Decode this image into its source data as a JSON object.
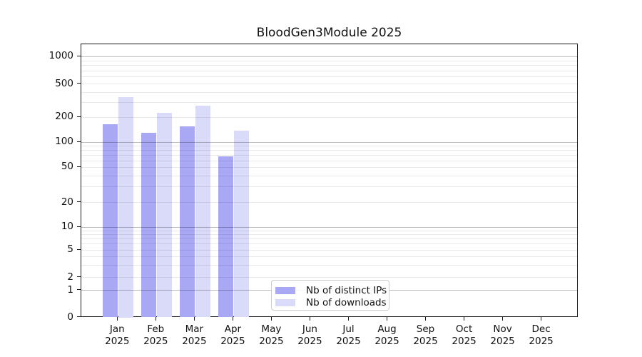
{
  "chart_data": {
    "type": "bar",
    "title": "BloodGen3Module 2025",
    "x_axis": {
      "months": [
        "Jan",
        "Feb",
        "Mar",
        "Apr",
        "May",
        "Jun",
        "Jul",
        "Aug",
        "Sep",
        "Oct",
        "Nov",
        "Dec"
      ],
      "year": "2025"
    },
    "y_axis": {
      "scale": "symlog",
      "tick_labels": [
        "1000",
        "500",
        "200",
        "100",
        "50",
        "20",
        "10",
        "5",
        "2",
        "1",
        "0"
      ],
      "ylim": [
        0,
        1400
      ],
      "grid": "on"
    },
    "series": [
      {
        "name": "Nb of distinct IPs",
        "color": "#a8a8f4",
        "values": [
          164,
          130,
          156,
          68,
          null,
          null,
          null,
          null,
          null,
          null,
          null,
          null
        ]
      },
      {
        "name": "Nb of downloads",
        "color": "#dadaf9",
        "values": [
          352,
          226,
          277,
          139,
          null,
          null,
          null,
          null,
          null,
          null,
          null,
          null
        ]
      }
    ],
    "legend": {
      "position": "lower center"
    },
    "colors": {
      "major_grid": "#c2c2c2",
      "minor_grid": "#e9e9e9",
      "spine": "#1a1a1a"
    }
  }
}
